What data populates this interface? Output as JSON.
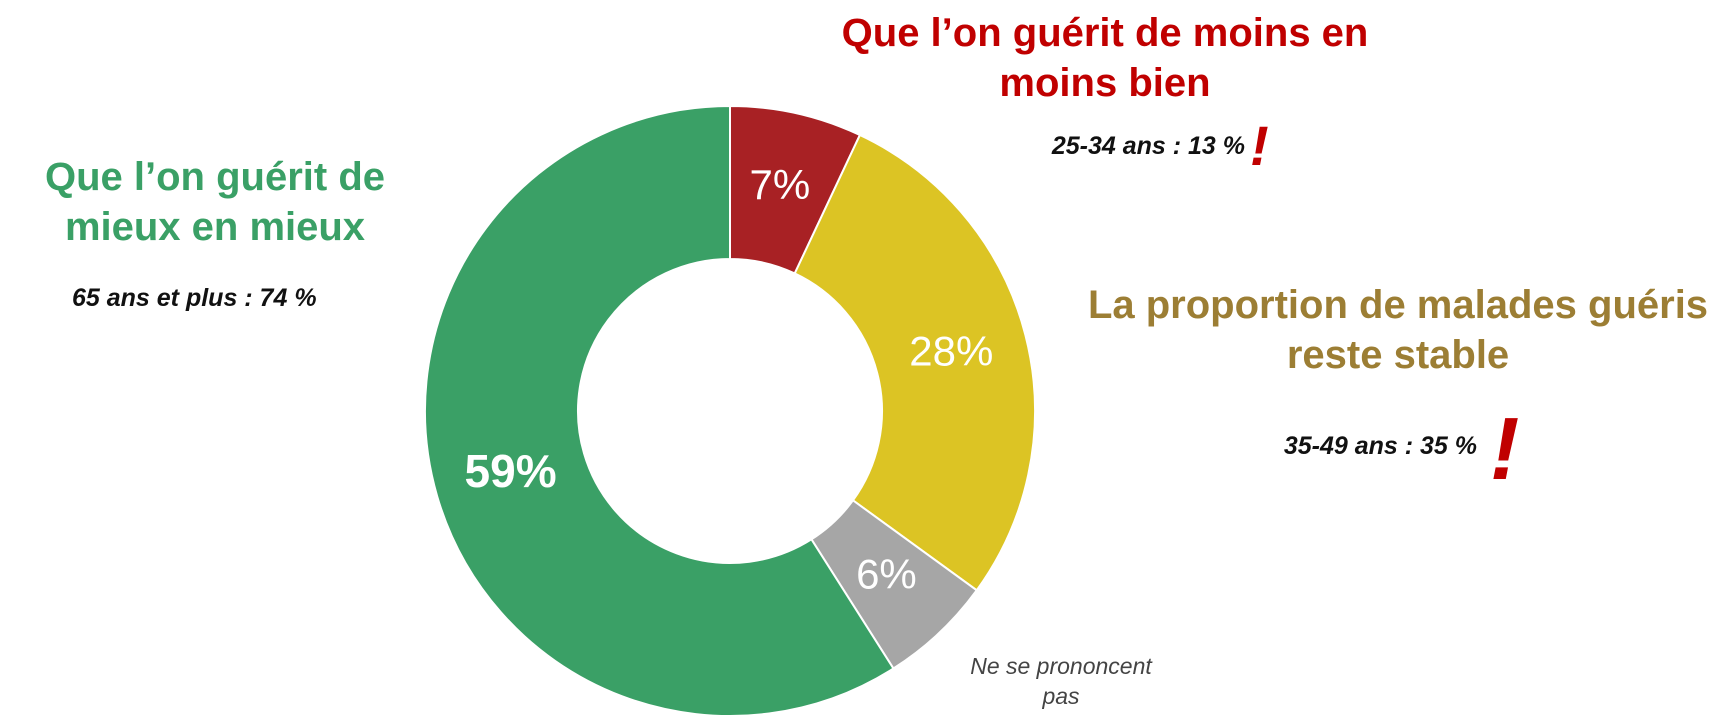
{
  "chart_data": {
    "type": "donut",
    "categories": [
      "Que l’on guérit de moins en moins bien",
      "La proportion de malades guéris reste stable",
      "Ne se prononcent pas",
      "Que l’on guérit de mieux en mieux"
    ],
    "values": [
      7,
      28,
      6,
      59
    ],
    "value_labels": [
      "7%",
      "28%",
      "6%",
      "59%"
    ],
    "colors": [
      "#a82124",
      "#dcc424",
      "#a6a6a6",
      "#3aa066"
    ],
    "annotations": [
      {
        "text": "25-34 ans : 13 %",
        "mark": "!"
      },
      {
        "text": "35-49 ans : 35 %",
        "mark": "!"
      },
      {
        "text": "65 ans et plus : 74 %"
      }
    ]
  }
}
